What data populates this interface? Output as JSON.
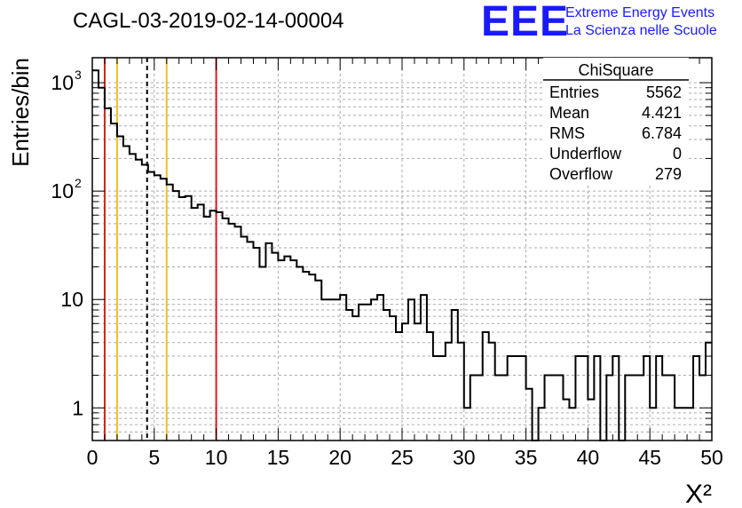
{
  "header": {
    "title": "CAGL-03-2019-02-14-00004",
    "logo_text": "EEE",
    "logo_line1": "Extreme Energy Events",
    "logo_line2": "La Scienza nelle Scuole",
    "logo_color": "#1a1aff"
  },
  "stats": {
    "name": "ChiSquare",
    "rows": [
      {
        "label": "Entries",
        "value": "5562"
      },
      {
        "label": "Mean",
        "value": "4.421"
      },
      {
        "label": "RMS",
        "value": "6.784"
      },
      {
        "label": "Underflow",
        "value": "0"
      },
      {
        "label": "Overflow",
        "value": "279"
      }
    ]
  },
  "chart_data": {
    "type": "histogram",
    "xlabel": "X²",
    "ylabel": "Entries/bin",
    "xlim": [
      0,
      50
    ],
    "ylim": [
      0.5,
      1700
    ],
    "yscale": "log",
    "grid": true,
    "bin_width": 0.5,
    "x_ticks": [
      "0",
      "5",
      "10",
      "15",
      "20",
      "25",
      "30",
      "35",
      "40",
      "45",
      "50"
    ],
    "y_ticks": [
      {
        "value": 1,
        "label": "1"
      },
      {
        "value": 10,
        "label": "10"
      },
      {
        "value": 100,
        "base": "10",
        "exp": "2"
      },
      {
        "value": 1000,
        "base": "10",
        "exp": "3"
      }
    ],
    "bin_values": [
      1300,
      900,
      580,
      420,
      320,
      260,
      220,
      195,
      175,
      150,
      140,
      130,
      115,
      100,
      88,
      90,
      70,
      75,
      58,
      66,
      64,
      56,
      50,
      47,
      38,
      34,
      30,
      20,
      33,
      27,
      23,
      25,
      23,
      20,
      18,
      17,
      15,
      10,
      10,
      10,
      11,
      8,
      7,
      9,
      9,
      10,
      11,
      8,
      7,
      5,
      6,
      10,
      6,
      11,
      5,
      3,
      3,
      4,
      8,
      4,
      1,
      2,
      2,
      5,
      4,
      2,
      2,
      3,
      3,
      3,
      1.5,
      0.3,
      1,
      2,
      2,
      2,
      1.2,
      1,
      3,
      3,
      1.2,
      3,
      0.3,
      2,
      3,
      0.3,
      2,
      2,
      2,
      3,
      1,
      3,
      2,
      2,
      1,
      1,
      1,
      3,
      2,
      4
    ],
    "vertical_lines": [
      {
        "x": 1,
        "color": "#d42020",
        "style": "solid"
      },
      {
        "x": 2,
        "color": "#f0c020",
        "style": "solid"
      },
      {
        "x": 4.421,
        "color": "#000000",
        "style": "dashed"
      },
      {
        "x": 6,
        "color": "#f0c020",
        "style": "solid"
      },
      {
        "x": 10,
        "color": "#d42020",
        "style": "solid"
      }
    ]
  }
}
